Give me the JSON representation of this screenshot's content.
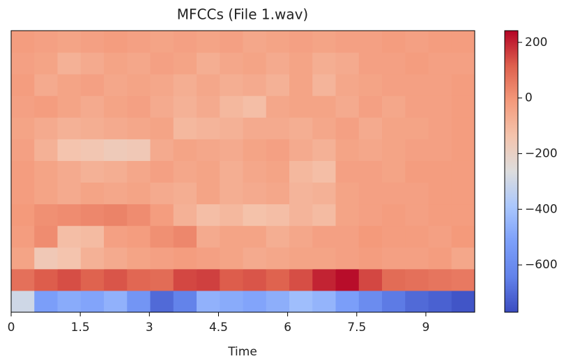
{
  "chart_data": {
    "type": "heatmap",
    "title": "MFCCs (File 1.wav)",
    "xlabel": "Time",
    "xlim": [
      0,
      10.06
    ],
    "xticks": [
      0,
      1.5,
      3,
      4.5,
      6,
      7.5,
      9
    ],
    "colormap": "coolwarm",
    "clim": [
      -770,
      242
    ],
    "cticks": [
      {
        "value": -600,
        "label": "−600"
      },
      {
        "value": -400,
        "label": "−400"
      },
      {
        "value": -200,
        "label": "−200"
      },
      0,
      200
    ],
    "values": [
      [
        -300,
        -520,
        -480,
        -500,
        -460,
        -560,
        -700,
        -640,
        -460,
        -480,
        -500,
        -470,
        -420,
        -450,
        -520,
        -600,
        -660,
        -700,
        -720,
        -750
      ],
      [
        80,
        120,
        140,
        110,
        130,
        100,
        90,
        150,
        160,
        120,
        130,
        110,
        140,
        200,
        230,
        150,
        90,
        80,
        70,
        60
      ],
      [
        -40,
        -160,
        -140,
        -80,
        -60,
        -40,
        -30,
        -20,
        -30,
        -40,
        -60,
        -50,
        -40,
        -40,
        -30,
        -20,
        -30,
        -30,
        -20,
        -50
      ],
      [
        -20,
        20,
        -120,
        -110,
        -30,
        -20,
        10,
        30,
        -60,
        -40,
        -40,
        -70,
        -50,
        -30,
        -30,
        -10,
        -20,
        -20,
        -30,
        -10
      ],
      [
        -10,
        10,
        20,
        30,
        40,
        20,
        -20,
        -80,
        -120,
        -100,
        -130,
        -120,
        -90,
        -110,
        -40,
        -30,
        -20,
        -30,
        -20,
        -20
      ],
      [
        -20,
        -40,
        -60,
        -40,
        -50,
        -40,
        -60,
        -70,
        -40,
        -70,
        -60,
        -50,
        -90,
        -80,
        -40,
        -30,
        -30,
        -30,
        -20,
        -20
      ],
      [
        -20,
        -40,
        -60,
        -80,
        -70,
        -50,
        -30,
        -50,
        -40,
        -70,
        -50,
        -40,
        -100,
        -120,
        -30,
        -30,
        -40,
        -20,
        -20,
        -20
      ],
      [
        -30,
        -80,
        -140,
        -150,
        -170,
        -160,
        -60,
        -40,
        -50,
        -60,
        -40,
        -30,
        -60,
        -80,
        -40,
        -50,
        -40,
        -30,
        -30,
        -20
      ],
      [
        -40,
        -60,
        -80,
        -70,
        -60,
        -50,
        -40,
        -100,
        -90,
        -80,
        -60,
        -60,
        -70,
        -50,
        -30,
        -60,
        -40,
        -40,
        -30,
        -20
      ],
      [
        -30,
        -20,
        -40,
        -60,
        -40,
        -30,
        -60,
        -80,
        -60,
        -100,
        -120,
        -50,
        -40,
        -40,
        -60,
        -30,
        -50,
        -30,
        -30,
        -20
      ],
      [
        -20,
        -60,
        -40,
        -30,
        -50,
        -40,
        -50,
        -70,
        -50,
        -70,
        -60,
        -80,
        -40,
        -90,
        -50,
        -40,
        -30,
        -30,
        -30,
        -20
      ],
      [
        -30,
        -40,
        -80,
        -60,
        -40,
        -50,
        -30,
        -40,
        -70,
        -50,
        -40,
        -60,
        -40,
        -70,
        -60,
        -30,
        -30,
        -20,
        -30,
        -30
      ],
      [
        -20,
        -30,
        -40,
        -30,
        -20,
        -30,
        -40,
        -30,
        -40,
        -30,
        -50,
        -40,
        -30,
        -40,
        -30,
        -30,
        -20,
        -30,
        -20,
        -20
      ]
    ]
  }
}
